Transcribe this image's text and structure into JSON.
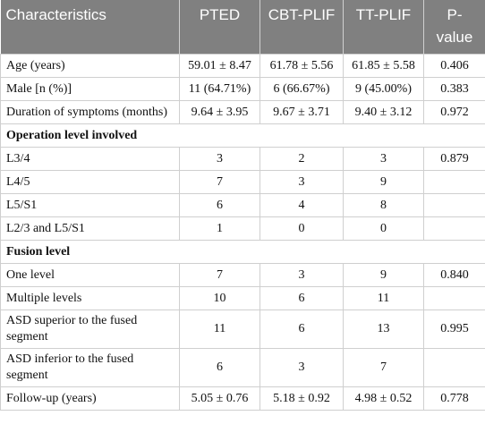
{
  "table": {
    "header": [
      "Characteristics",
      "PTED",
      "CBT-PLIF",
      "TT-PLIF",
      "P-value"
    ],
    "rows": [
      [
        "Age (years)",
        "59.01 ± 8.47",
        "61.78 ± 5.56",
        "61.85 ± 5.58",
        "0.406"
      ],
      [
        "Male [n (%)]",
        "11 (64.71%)",
        "6 (66.67%)",
        "9 (45.00%)",
        "0.383"
      ],
      [
        "Duration of symptoms (months)",
        "9.64 ± 3.95",
        "9.67 ± 3.71",
        "9.40 ± 3.12",
        "0.972"
      ],
      [
        "Operation level involved"
      ],
      [
        "L3/4",
        "3",
        "2",
        "3",
        "0.879"
      ],
      [
        "L4/5",
        "7",
        "3",
        "9"
      ],
      [
        "L5/S1",
        "6",
        "4",
        "8"
      ],
      [
        "L2/3 and L5/S1",
        "1",
        "0",
        "0"
      ],
      [
        "Fusion level"
      ],
      [
        "One level",
        "7",
        "3",
        "9",
        "0.840"
      ],
      [
        "Multiple levels",
        "10",
        "6",
        "11"
      ],
      [
        "ASD superior to the fused segment",
        "11",
        "6",
        "13",
        "0.995"
      ],
      [
        "ASD inferior to the fused segment",
        "6",
        "3",
        "7"
      ],
      [
        "Follow-up (years)",
        "5.05 ± 0.76",
        "5.18 ± 0.92",
        "4.98 ± 0.52",
        "0.778"
      ]
    ]
  }
}
